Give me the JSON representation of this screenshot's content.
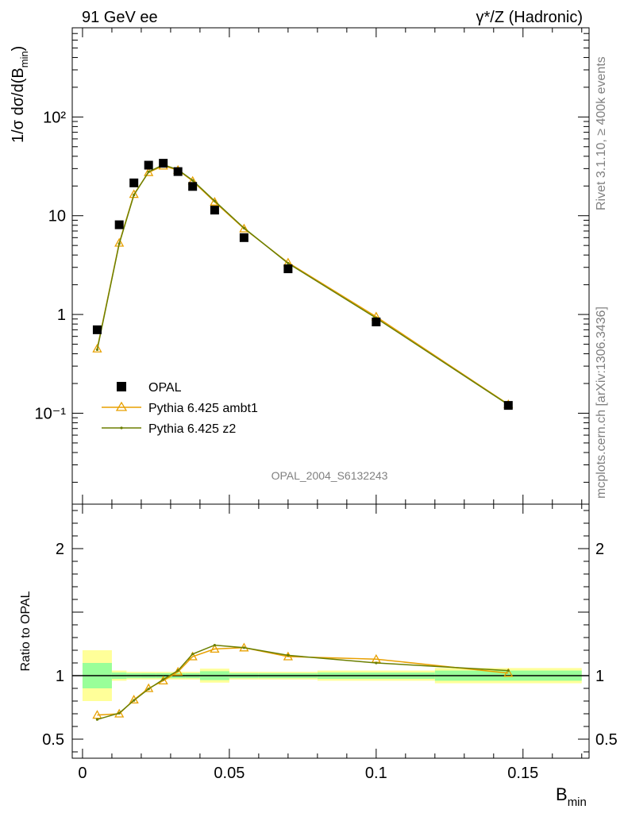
{
  "header": {
    "left": "91 GeV ee",
    "right": "γ*/Z (Hadronic)"
  },
  "side": {
    "rivet": "Rivet 3.1.10, ≥ 400k events",
    "mcplots": "mcplots.cern.ch [arXiv:1306.3436]"
  },
  "watermark": "OPAL_2004_S6132243",
  "colors": {
    "opal": "#000000",
    "ambt1": "#e8a000",
    "z2": "#6b7f00",
    "band_inner": "#99ff99",
    "band_outer": "#ffff99"
  },
  "chart_data": [
    {
      "type": "scatter",
      "scale": "log",
      "ylabel": "1/σ dσ/d(B",
      "ylabel_sub": "min",
      "ylabel_tail": ")",
      "ylim": [
        0.012,
        800
      ],
      "yticks": [
        "10⁻¹",
        "1",
        "10",
        "10²"
      ],
      "x": [
        0.005,
        0.0125,
        0.0175,
        0.0225,
        0.0275,
        0.0325,
        0.0375,
        0.045,
        0.055,
        0.07,
        0.1,
        0.145
      ],
      "series": [
        {
          "name": "OPAL",
          "values": [
            0.7,
            8.1,
            21.5,
            32.5,
            34.0,
            28.0,
            19.8,
            11.4,
            6.0,
            2.9,
            0.84,
            0.12
          ]
        },
        {
          "name": "Pythia 6.425 ambt1",
          "values": [
            0.45,
            5.3,
            16.5,
            27.5,
            32.0,
            29.0,
            22.5,
            13.8,
            7.4,
            3.35,
            0.95,
            0.123
          ]
        },
        {
          "name": "Pythia 6.425 z2",
          "values": [
            0.44,
            5.2,
            16.2,
            27.8,
            32.8,
            29.3,
            22.8,
            14.1,
            7.5,
            3.3,
            0.92,
            0.122
          ]
        }
      ]
    },
    {
      "type": "line",
      "ylabel": "Ratio to OPAL",
      "xlabel": "B",
      "xlabel_sub": "min",
      "xlim": [
        -0.0035,
        0.1725
      ],
      "ylim": [
        0.35,
        2.35
      ],
      "xticks": [
        "0",
        "0.05",
        "0.1",
        "0.15"
      ],
      "xtick_values": [
        0,
        0.05,
        0.1,
        0.15
      ],
      "yticks": [
        "0.5",
        "1",
        "2"
      ],
      "ytick_values": [
        0.5,
        1,
        2
      ],
      "bins": [
        [
          0,
          0.01
        ],
        [
          0.01,
          0.015
        ],
        [
          0.015,
          0.02
        ],
        [
          0.02,
          0.025
        ],
        [
          0.025,
          0.03
        ],
        [
          0.03,
          0.035
        ],
        [
          0.035,
          0.04
        ],
        [
          0.04,
          0.05
        ],
        [
          0.05,
          0.06
        ],
        [
          0.06,
          0.08
        ],
        [
          0.08,
          0.12
        ],
        [
          0.12,
          0.17
        ]
      ],
      "band_inner": [
        0.1,
        0.025,
        0.02,
        0.02,
        0.02,
        0.02,
        0.02,
        0.035,
        0.02,
        0.02,
        0.025,
        0.04
      ],
      "band_outer": [
        0.2,
        0.04,
        0.03,
        0.03,
        0.03,
        0.03,
        0.03,
        0.055,
        0.03,
        0.03,
        0.04,
        0.06
      ],
      "x": [
        0.005,
        0.0125,
        0.0175,
        0.0225,
        0.0275,
        0.0325,
        0.0375,
        0.045,
        0.055,
        0.07,
        0.1,
        0.145
      ],
      "series": [
        {
          "name": "Pythia 6.425 ambt1",
          "values": [
            0.69,
            0.7,
            0.81,
            0.9,
            0.96,
            1.03,
            1.15,
            1.21,
            1.22,
            1.15,
            1.13,
            1.02
          ]
        },
        {
          "name": "Pythia 6.425 z2",
          "values": [
            0.655,
            0.705,
            0.805,
            0.895,
            0.97,
            1.04,
            1.17,
            1.24,
            1.22,
            1.16,
            1.1,
            1.04
          ]
        }
      ]
    }
  ]
}
